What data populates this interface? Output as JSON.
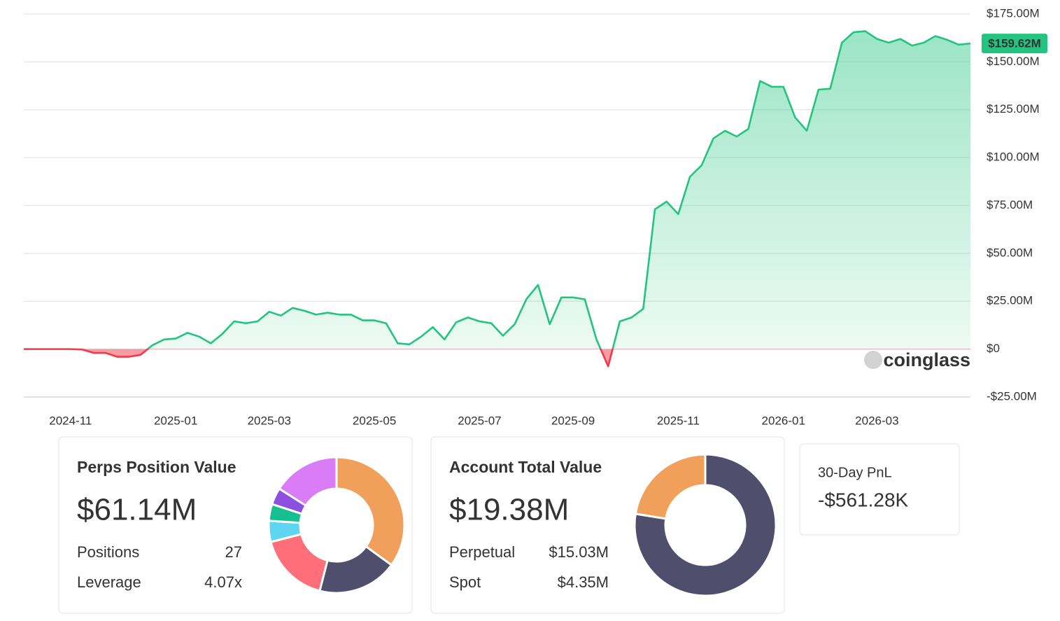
{
  "chart_data": {
    "type": "line",
    "categories": [
      null,
      null,
      null,
      null,
      "2024-11",
      null,
      null,
      null,
      null,
      null,
      null,
      null,
      null,
      "2025-01",
      null,
      null,
      null,
      null,
      null,
      null,
      null,
      "2025-03",
      null,
      null,
      null,
      null,
      null,
      null,
      null,
      null,
      "2025-05",
      null,
      null,
      null,
      null,
      null,
      null,
      null,
      null,
      "2025-07",
      null,
      null,
      null,
      null,
      null,
      null,
      null,
      "2025-09",
      null,
      null,
      null,
      null,
      null,
      null,
      null,
      null,
      "2025-11",
      null,
      null,
      null,
      null,
      null,
      null,
      null,
      null,
      "2026-01",
      null,
      null,
      null,
      null,
      null,
      null,
      null,
      "2026-03",
      null,
      null,
      null,
      null,
      null,
      null,
      null,
      null
    ],
    "values": [
      0,
      0,
      0,
      0,
      0,
      -0.2,
      -2,
      -2,
      -4,
      -4,
      -3,
      2,
      5,
      5.5,
      8.5,
      6.5,
      3,
      8,
      14.5,
      13.5,
      14.5,
      19.5,
      17.5,
      21.5,
      20,
      18,
      19,
      18,
      18,
      15,
      15,
      13.5,
      3,
      2.5,
      6.5,
      11.5,
      5,
      14,
      16.5,
      14.5,
      13.5,
      7,
      13,
      26,
      33.5,
      13,
      27,
      27,
      26,
      5,
      -9,
      14.5,
      16.5,
      21,
      73,
      77,
      70.5,
      90,
      96,
      110,
      114,
      111,
      115,
      140,
      137,
      137,
      121,
      114,
      135.5,
      136,
      160,
      165.5,
      166,
      162,
      160,
      162,
      158.5,
      160,
      163.5,
      161.5,
      159,
      159.62
    ],
    "value_labels": [
      null,
      null,
      null,
      null,
      null,
      null,
      null,
      null,
      null,
      null,
      null,
      null,
      null,
      null,
      null,
      null,
      null,
      null,
      null,
      null,
      null,
      null,
      null,
      null,
      null,
      null,
      null,
      null,
      null,
      null,
      null,
      null,
      null,
      null,
      null,
      null,
      null,
      null,
      null,
      null,
      null,
      null,
      null,
      null,
      null,
      null,
      null,
      null,
      null,
      null,
      null,
      null,
      null,
      null,
      null,
      null,
      null,
      null,
      null,
      null,
      null,
      null,
      null,
      null,
      null,
      null,
      null,
      null,
      null,
      null,
      null,
      null,
      null,
      null,
      null,
      null,
      null,
      null,
      null,
      null,
      null,
      "$159.62M"
    ],
    "color": "#22c47f",
    "negative_color": "#ef3a4c",
    "ylim": [
      -25,
      175
    ],
    "yticks": [
      {
        "value": -25,
        "label": "-$25.00M"
      },
      {
        "value": 0,
        "label": "$0"
      },
      {
        "value": 25,
        "label": "$25.00M"
      },
      {
        "value": 50,
        "label": "$50.00M"
      },
      {
        "value": 75,
        "label": "$75.00M"
      },
      {
        "value": 100,
        "label": "$100.00M"
      },
      {
        "value": 125,
        "label": "$125.00M"
      },
      {
        "value": 150,
        "label": "$150.00M"
      },
      {
        "value": 175,
        "label": "$175.00M"
      }
    ],
    "grid": true,
    "watermark": "coinglass"
  },
  "cards": [
    {
      "title": "Perps Position Value",
      "value": "$61.14M",
      "value_color": "#24a88a",
      "rows": [
        {
          "label": "Positions",
          "value": "27"
        },
        {
          "label": "Leverage",
          "value": "4.07x"
        }
      ],
      "donut": {
        "values": [
          35,
          19,
          17,
          5,
          4,
          4,
          16
        ],
        "colors": [
          "#f0a05a",
          "#4f4f6d",
          "#fe6f7a",
          "#5ed6f2",
          "#14c08f",
          "#8c4fe0",
          "#d97cf6"
        ]
      }
    },
    {
      "title": "Account Total Value",
      "value": "$19.38M",
      "value_color": "#e8333f",
      "rows": [
        {
          "label": "Perpetual",
          "value": "$15.03M",
          "color": "#e8333f"
        },
        {
          "label": "Spot",
          "value": "$4.35M"
        }
      ],
      "donut": {
        "values": [
          15.03,
          4.35
        ],
        "colors": [
          "#4f4f6d",
          "#f0a05a"
        ]
      }
    }
  ],
  "pnl_card": {
    "title": "30-Day PnL",
    "value": "-$561.28K",
    "value_color": "#e8333f"
  }
}
